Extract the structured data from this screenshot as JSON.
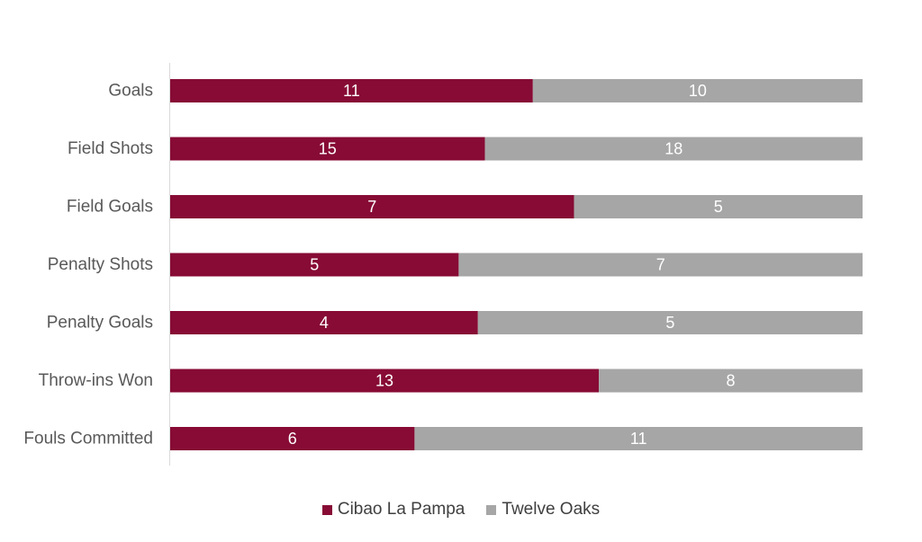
{
  "chart_data": {
    "type": "bar",
    "orientation": "horizontal",
    "stacked": "percent",
    "categories": [
      "Goals",
      "Field Shots",
      "Field Goals",
      "Penalty Shots",
      "Penalty Goals",
      "Throw-ins Won",
      "Fouls Committed"
    ],
    "series": [
      {
        "name": "Cibao La Pampa",
        "color": "#870b35",
        "values": [
          11,
          15,
          7,
          5,
          4,
          13,
          6
        ]
      },
      {
        "name": "Twelve Oaks",
        "color": "#a6a6a6",
        "values": [
          10,
          18,
          5,
          7,
          5,
          8,
          11
        ]
      }
    ],
    "legend_position": "bottom",
    "grid": false,
    "data_labels": true
  }
}
